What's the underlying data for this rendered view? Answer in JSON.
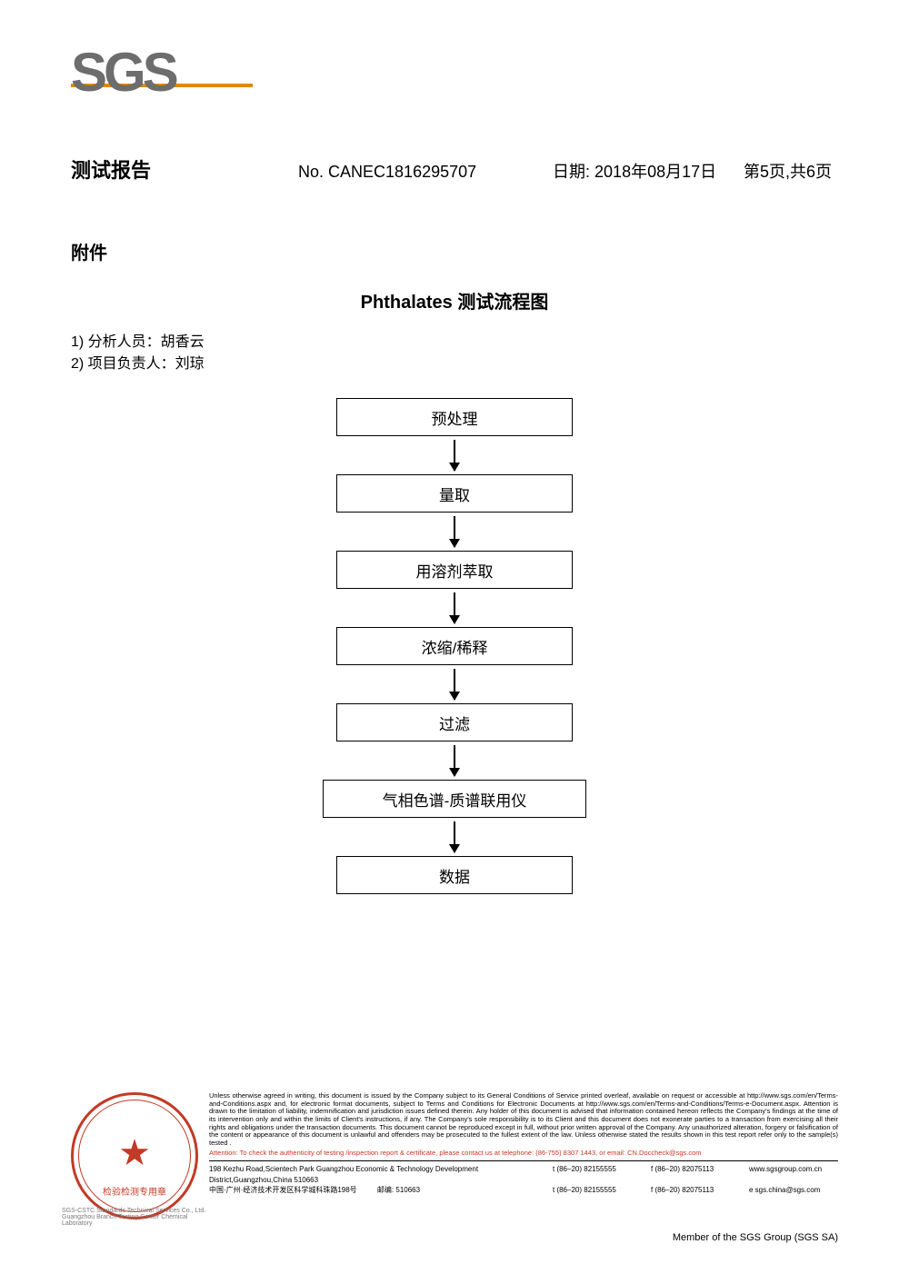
{
  "logo": {
    "text": "SGS",
    "text_color": "#6d6d6d",
    "line_color": "#e08a00"
  },
  "header": {
    "title": "测试报告",
    "report_no_label": "No.",
    "report_no": "CANEC1816295707",
    "date_label": "日期:",
    "date": "2018年08月17日",
    "page": "第5页,共6页"
  },
  "section": {
    "attachment": "附件",
    "flow_title": "Phthalates 测试流程图",
    "person1": "1)  分析人员：胡香云",
    "person2": "2)  项目负责人：刘琼"
  },
  "flowchart": {
    "type": "flowchart",
    "node_border_color": "#000000",
    "node_bg": "#ffffff",
    "arrow_color": "#000000",
    "node_fontsize": 17,
    "nodes": [
      {
        "id": "n1",
        "label": "预处理",
        "wide": false
      },
      {
        "id": "n2",
        "label": "量取",
        "wide": false
      },
      {
        "id": "n3",
        "label": "用溶剂萃取",
        "wide": false
      },
      {
        "id": "n4",
        "label": "浓缩/稀释",
        "wide": false
      },
      {
        "id": "n5",
        "label": "过滤",
        "wide": false
      },
      {
        "id": "n6",
        "label": "气相色谱-质谱联用仪",
        "wide": true
      },
      {
        "id": "n7",
        "label": "数据",
        "wide": false
      }
    ],
    "edges": [
      [
        "n1",
        "n2"
      ],
      [
        "n2",
        "n3"
      ],
      [
        "n3",
        "n4"
      ],
      [
        "n4",
        "n5"
      ],
      [
        "n5",
        "n6"
      ],
      [
        "n6",
        "n7"
      ]
    ]
  },
  "footer": {
    "seal": {
      "ring_color": "#c33a25",
      "star": "★",
      "center_text": "检验检测专用章",
      "lab_line1": "SGS-CSTC Standards Technical Services Co., Ltd.",
      "lab_line2": "Guangzhou Branch Testing Center Chemical Laboratory"
    },
    "disclaimer": "Unless otherwise agreed in writing, this document is issued by the Company subject to its General Conditions of Service printed overleaf, available on request or accessible at http://www.sgs.com/en/Terms-and-Conditions.aspx and, for electronic format documents, subject to Terms and Conditions for Electronic Documents at http://www.sgs.com/en/Terms-and-Conditions/Terms-e-Document.aspx. Attention is drawn to the limitation of liability, indemnification and jurisdiction issues defined therein. Any holder of this document is advised that information contained hereon reflects the Company's findings at the time of its intervention only and within the limits of Client's instructions, if any. The Company's sole responsibility is to its Client and this document does not exonerate parties to a transaction from exercising all their rights and obligations under the transaction documents. This document cannot be reproduced except in full, without prior written approval of the Company. Any unauthorized alteration, forgery or falsification of the content or appearance of this document is unlawful and offenders may be prosecuted to the fullest extent of the law. Unless otherwise stated the results shown in this test report refer only to the sample(s) tested .",
    "attention": "Attention: To check the authenticity of testing /inspection report & certificate, please contact us at telephone: (86-755) 8307 1443, or email: CN.Doccheck@sgs.com",
    "address": {
      "en_addr": "198 Kezhu Road,Scientech Park Guangzhou Economic & Technology Development District,Guangzhou,China 510663",
      "en_tel": "t (86–20) 82155555",
      "en_fax": "f (86–20) 82075113",
      "en_web": "www.sgsgroup.com.cn",
      "cn_addr": "中国·广州·经济技术开发区科学城科珠路198号",
      "cn_post": "邮编: 510663",
      "cn_tel": "t (86–20) 82155555",
      "cn_fax": "f (86–20) 82075113",
      "cn_email": "e  sgs.china@sgs.com"
    },
    "member": "Member of the SGS Group (SGS SA)"
  }
}
